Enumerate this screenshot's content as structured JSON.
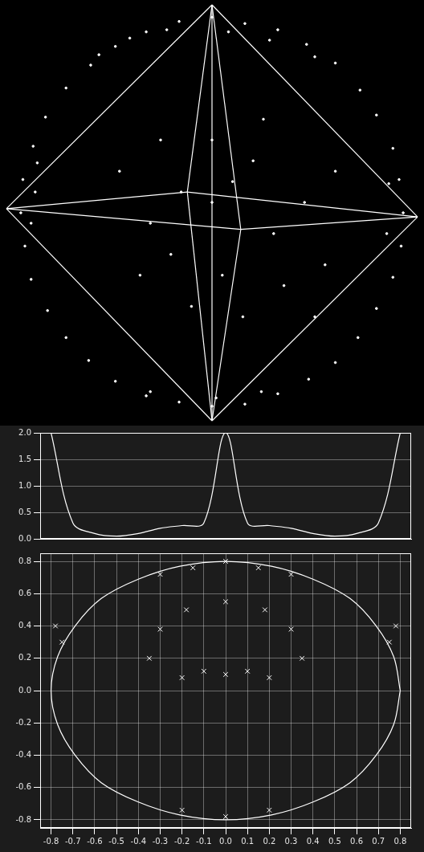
{
  "chart_data": [
    {
      "type": "scatter",
      "x": [
        0.93,
        0.91,
        0.88,
        0.8,
        0.72,
        0.6,
        0.46,
        0.32,
        0.16,
        0,
        -0.16,
        -0.32,
        -0.47,
        -0.59,
        -0.71,
        -0.81,
        -0.87,
        -0.92,
        -0.93,
        -0.91,
        -0.88,
        -0.8,
        -0.71,
        -0.6,
        -0.47,
        -0.32,
        -0.16,
        0,
        0.16,
        0.32,
        0.47,
        0.6,
        0.71,
        0.8,
        0.88,
        0.92,
        -0.4,
        -0.22,
        0.08,
        0.28,
        -0.55,
        0.5,
        -0.86,
        -0.88,
        -0.85,
        0.86,
        0.85,
        -0.3,
        0.02,
        0.24,
        0,
        0.1,
        0.2,
        -0.15,
        -0.3,
        -0.2,
        0.05,
        0.3,
        0.45,
        0.55,
        0.35,
        0.15,
        -0.1,
        -0.35,
        -0.45,
        0.25,
        0.6,
        0.5,
        0,
        -0.25
      ],
      "values": [
        0,
        0.16,
        0.31,
        0.47,
        0.59,
        0.72,
        0.81,
        0.88,
        0.91,
        0.94,
        0.92,
        0.87,
        0.8,
        0.71,
        0.6,
        0.46,
        0.32,
        0.16,
        0,
        -0.16,
        -0.32,
        -0.47,
        -0.6,
        -0.71,
        -0.81,
        -0.88,
        -0.91,
        -0.93,
        -0.92,
        -0.87,
        -0.8,
        -0.72,
        -0.6,
        -0.46,
        -0.31,
        -0.16,
        0.84,
        0.88,
        0.87,
        0.83,
        0.76,
        0.75,
        0.1,
        -0.05,
        0.24,
        0.14,
        -0.1,
        -0.86,
        -0.89,
        -0.86,
        0.05,
        0.15,
        0.25,
        0.1,
        -0.05,
        -0.2,
        -0.3,
        -0.1,
        0.05,
        -0.25,
        -0.35,
        -0.5,
        -0.45,
        -0.3,
        0.2,
        0.45,
        0.2,
        -0.5,
        0.35,
        0.35
      ],
      "xlim": [
        -1,
        1
      ],
      "ylim": [
        -1,
        1
      ],
      "tick_labels": false,
      "grid": false,
      "color": "#ffffff",
      "marker": "point"
    },
    {
      "type": "line",
      "x": [
        -0.8,
        -0.7,
        -0.6,
        -0.5,
        -0.4,
        -0.3,
        -0.2,
        -0.1,
        0,
        0.1,
        0.2,
        0.3,
        0.4,
        0.5,
        0.6,
        0.7,
        0.8
      ],
      "values": [
        2,
        0.3,
        0.1,
        0.05,
        0.1,
        0.2,
        0.25,
        0.3,
        2,
        0.3,
        0.25,
        0.2,
        0.1,
        0.05,
        0.1,
        0.3,
        2
      ],
      "xlim": [
        -0.85,
        0.85
      ],
      "ylim": [
        0,
        2
      ],
      "yticks": [
        {
          "value": 0,
          "label": "0.0"
        },
        0.5,
        {
          "value": 1,
          "label": "1.0"
        },
        1.5,
        {
          "value": 2,
          "label": "2.0"
        }
      ],
      "tick_labels": "y",
      "grid": true,
      "color": "#ffffff"
    },
    {
      "type": "scatter",
      "series": [
        {
          "type": "line",
          "x": [
            0.8,
            0.77,
            0.69,
            0.57,
            0.4,
            0.21,
            0,
            -0.21,
            -0.4,
            -0.57,
            -0.69,
            -0.77,
            -0.8,
            -0.77,
            -0.69,
            -0.57,
            -0.4,
            -0.21,
            0,
            0.21,
            0.4,
            0.57,
            0.69,
            0.77,
            0.8
          ],
          "values": [
            0,
            0.21,
            0.4,
            0.57,
            0.69,
            0.77,
            0.8,
            0.77,
            0.69,
            0.57,
            0.4,
            0.21,
            0,
            -0.21,
            -0.4,
            -0.57,
            -0.69,
            -0.77,
            -0.8,
            -0.77,
            -0.69,
            -0.57,
            -0.4,
            -0.21,
            0
          ],
          "color": "#ffffff"
        },
        {
          "type": "scatter",
          "x": [
            -0.35,
            -0.3,
            -0.18,
            0,
            0.18,
            0.3,
            0.35,
            -0.2,
            -0.1,
            0,
            0.1,
            0.2,
            -0.3,
            -0.15,
            0,
            0.15,
            0.3,
            -0.2,
            0,
            0.2,
            -0.78,
            -0.75,
            0.78,
            0.75
          ],
          "values": [
            0.2,
            0.38,
            0.5,
            0.55,
            0.5,
            0.38,
            0.2,
            0.08,
            0.12,
            0.1,
            0.12,
            0.08,
            0.72,
            0.76,
            0.8,
            0.76,
            0.72,
            -0.74,
            -0.78,
            -0.74,
            0.4,
            0.3,
            0.4,
            0.3
          ],
          "color": "#ffffff",
          "marker": "cross"
        }
      ],
      "xlim": [
        -0.85,
        0.85
      ],
      "ylim": [
        -0.85,
        0.85
      ],
      "xticks": [
        -0.8,
        -0.7,
        -0.6,
        -0.5,
        -0.4,
        -0.3,
        -0.2,
        -0.1,
        {
          "value": 0,
          "label": "0.0"
        },
        0.1,
        0.2,
        0.3,
        0.4,
        0.5,
        0.6,
        0.7,
        0.8
      ],
      "yticks": [
        -0.8,
        -0.6,
        -0.4,
        -0.2,
        {
          "value": 0,
          "label": "0.0"
        },
        0.2,
        0.4,
        0.6,
        0.8
      ],
      "grid": true
    }
  ]
}
